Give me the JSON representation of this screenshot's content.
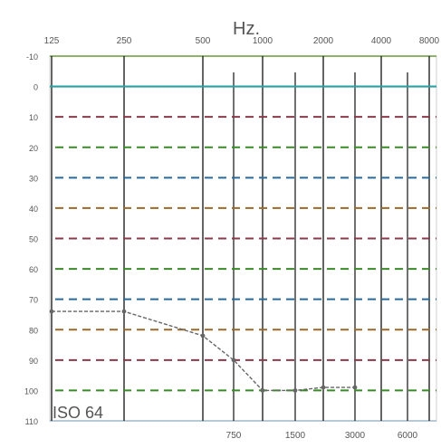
{
  "chart_data": {
    "type": "line",
    "title": "Hz.",
    "x_top_ticks": [
      "125",
      "250",
      "500",
      "1000",
      "2000",
      "4000",
      "8000"
    ],
    "x_top_marks": [
      "125",
      "250",
      "500",
      "1000",
      "2000",
      "4000",
      "8000"
    ],
    "x_bottom_ticks": [
      "750",
      "1500",
      "3000",
      "6000"
    ],
    "x_bottom_marks": [
      "750",
      "1500",
      "3000",
      "6000"
    ],
    "y_ticks": [
      "-10",
      "0",
      "10",
      "20",
      "30",
      "40",
      "50",
      "60",
      "70",
      "80",
      "90",
      "100",
      "110"
    ],
    "ylim": [
      -10,
      110
    ],
    "y_axis_reversed": true,
    "grid_levels_dashed": [
      10,
      20,
      30,
      40,
      50,
      60,
      70,
      80,
      90,
      100
    ],
    "grid_levels_solid": [
      0
    ],
    "series": [
      {
        "points": [
          {
            "x": "125",
            "y": 74
          },
          {
            "x": "250",
            "y": 74
          },
          {
            "x": "500",
            "y": 82
          },
          {
            "x": "750",
            "y": 90
          },
          {
            "x": "1000",
            "y": 100
          },
          {
            "x": "1500",
            "y": 100
          },
          {
            "x": "2000",
            "y": 99
          },
          {
            "x": "3000",
            "y": 99
          }
        ]
      }
    ],
    "annotation": "ISO 64",
    "colors": {
      "grid": "#111111",
      "zero_line": "#2aa1a6",
      "top_line": "#8fb36a",
      "series": "#666666",
      "dash_palette": [
        "#8a3a4a",
        "#3a8a2a",
        "#2a6a9a",
        "#9a6a2a"
      ]
    }
  }
}
